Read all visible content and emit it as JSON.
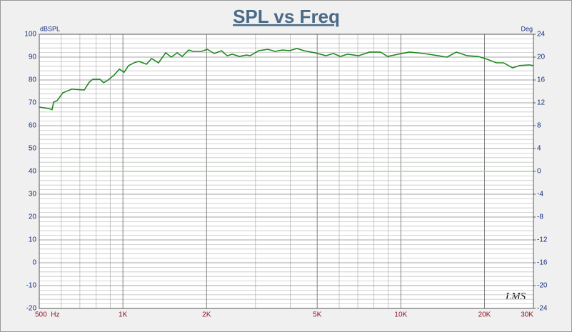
{
  "chart_data": {
    "type": "line",
    "title": "SPL vs Freq",
    "y_label": "dBSPL",
    "y2_label": "Deg",
    "watermark": "LMS",
    "log_x": true,
    "grid": true,
    "x": [
      500,
      540,
      556,
      563,
      580,
      608,
      644,
      652,
      726,
      756,
      779,
      827,
      852,
      878,
      931,
      970,
      1010,
      1048,
      1110,
      1144,
      1216,
      1268,
      1343,
      1425,
      1494,
      1567,
      1634,
      1724,
      1785,
      1917,
      2011,
      2132,
      2262,
      2373,
      2474,
      2624,
      2784,
      2868,
      3079,
      3325,
      3530,
      3748,
      3978,
      4224,
      4484,
      4909,
      5376,
      5708,
      6060,
      6434,
      7043,
      7711,
      8442,
      8963,
      9812,
      10742,
      12101,
      13633,
      14652,
      15838,
      17338,
      18980,
      20524,
      22089,
      23445,
      25214,
      26761,
      28951,
      30000
    ],
    "series": [
      {
        "color": "#1e8a1e",
        "values": [
          68.1,
          67.5,
          67,
          70.3,
          71,
          74.4,
          75.6,
          76,
          75.6,
          79,
          80.3,
          80.3,
          78.8,
          79.7,
          82.2,
          84.7,
          83.4,
          86.3,
          87.8,
          88.1,
          86.9,
          89.4,
          87.5,
          91.9,
          90,
          91.9,
          90.3,
          93.1,
          92.5,
          92.5,
          93.4,
          91.6,
          92.8,
          90.6,
          91.3,
          90.3,
          90.9,
          90.6,
          92.8,
          93.4,
          92.5,
          93.1,
          92.8,
          93.8,
          92.8,
          91.9,
          90.6,
          91.6,
          90.3,
          91.3,
          90.6,
          92.2,
          92.2,
          90.3,
          91.3,
          92.2,
          91.6,
          90.6,
          90,
          92.2,
          90.6,
          90.3,
          89,
          87.5,
          87.5,
          85.3,
          86.3,
          86.6,
          86.3
        ]
      },
      {
        "color": "#8fd08f",
        "axis": "y2",
        "x": [
          500,
          30000
        ],
        "values": [
          0,
          0
        ]
      }
    ],
    "xlim": [
      500,
      30000
    ],
    "xticks": [
      {
        "value": 500,
        "label": "500  Hz"
      },
      {
        "value": 1000,
        "label": "1K"
      },
      {
        "value": 2000,
        "label": "2K"
      },
      {
        "value": 5000,
        "label": "5K"
      },
      {
        "value": 10000,
        "label": "10K"
      },
      {
        "value": 20000,
        "label": "20K"
      },
      {
        "value": 30000,
        "label": "30K"
      }
    ],
    "x_minor_ticks": [
      600,
      700,
      800,
      900,
      3000,
      4000,
      6000,
      7000,
      8000,
      9000
    ],
    "ylim": [
      -20,
      100
    ],
    "yticks": [
      -20,
      -10,
      0,
      10,
      20,
      30,
      40,
      50,
      60,
      70,
      80,
      90,
      100
    ],
    "y_minor_ticks": [
      -18,
      -16,
      -14,
      -12,
      -8,
      -6,
      -4,
      -2,
      2,
      4,
      6,
      8,
      12,
      14,
      16,
      18,
      22,
      24,
      26,
      28,
      32,
      34,
      36,
      38,
      42,
      44,
      46,
      48,
      52,
      54,
      56,
      58,
      62,
      64,
      66,
      68,
      72,
      74,
      76,
      78,
      82,
      84,
      86,
      88,
      92,
      94,
      96,
      98
    ],
    "y2lim": [
      -24,
      24
    ],
    "y2ticks": [
      -24,
      -20,
      -16,
      -12,
      -8,
      -4,
      0,
      4,
      8,
      12,
      16,
      20,
      24
    ]
  }
}
